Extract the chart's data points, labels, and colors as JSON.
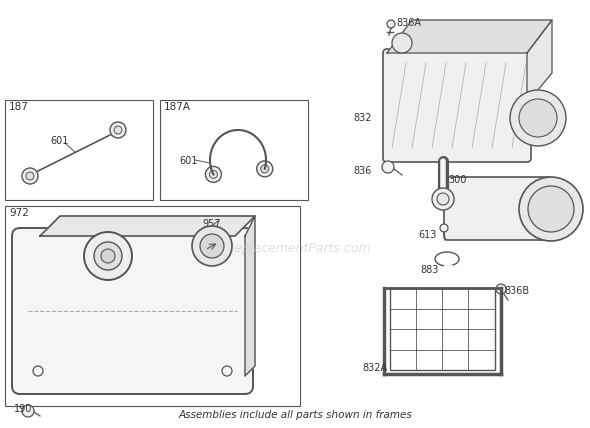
{
  "bg_color": "#ffffff",
  "line_color": "#555555",
  "text_color": "#333333",
  "watermark": "eReplacementParts.com",
  "watermark_color": "#cccccc",
  "footer_text": "Assemblies include all parts shown in frames",
  "parts": {
    "187_label": "187",
    "187A_label": "187A",
    "972_label": "972",
    "601_label_1": "601",
    "601_label_2": "601",
    "957_label": "957",
    "190_label": "190",
    "836A_label": "836A",
    "832_label": "832",
    "836_label": "836",
    "300_label": "300",
    "613_label": "613",
    "883_label": "883",
    "832A_label": "832A",
    "836B_label": "836B"
  }
}
